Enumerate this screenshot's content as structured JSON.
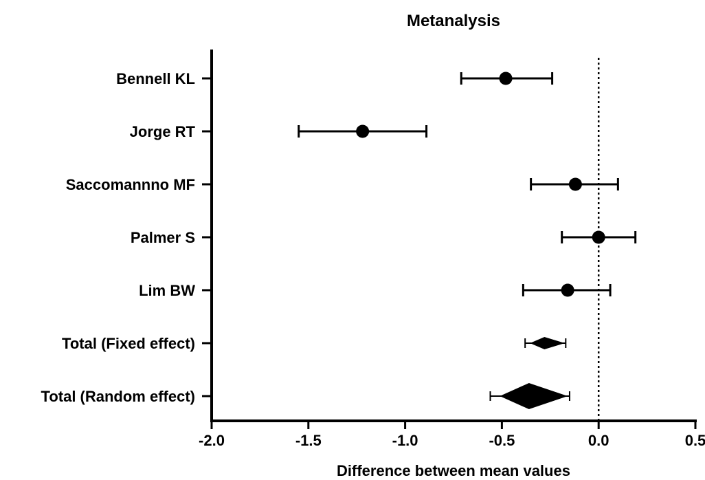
{
  "chart_data": {
    "type": "forest",
    "title": "Metanalysis",
    "xlabel": "Difference between mean values",
    "ylabel": "",
    "xlim": [
      -2.0,
      0.5
    ],
    "x_ticks": [
      "-2.0",
      "-1.5",
      "-1.0",
      "-0.5",
      "0.0",
      "0.5"
    ],
    "reference_line": {
      "x": 0.0,
      "style": "dotted"
    },
    "grid": false,
    "legend": "none",
    "studies": [
      {
        "label": "Bennell KL",
        "estimate": -0.48,
        "lower": -0.71,
        "upper": -0.24,
        "marker": "circle"
      },
      {
        "label": "Jorge RT",
        "estimate": -1.22,
        "lower": -1.55,
        "upper": -0.89,
        "marker": "circle"
      },
      {
        "label": "Saccomannno MF",
        "estimate": -0.12,
        "lower": -0.35,
        "upper": 0.1,
        "marker": "circle"
      },
      {
        "label": "Palmer S",
        "estimate": 0.0,
        "lower": -0.19,
        "upper": 0.19,
        "marker": "circle"
      },
      {
        "label": "Lim BW",
        "estimate": -0.16,
        "lower": -0.39,
        "upper": 0.06,
        "marker": "circle"
      },
      {
        "label": "Total (Fixed effect)",
        "estimate": -0.28,
        "lower": -0.38,
        "upper": -0.17,
        "marker": "diamond"
      },
      {
        "label": "Total (Random effect)",
        "estimate": -0.36,
        "lower": -0.56,
        "upper": -0.15,
        "marker": "diamond"
      }
    ],
    "color": "#000000"
  }
}
